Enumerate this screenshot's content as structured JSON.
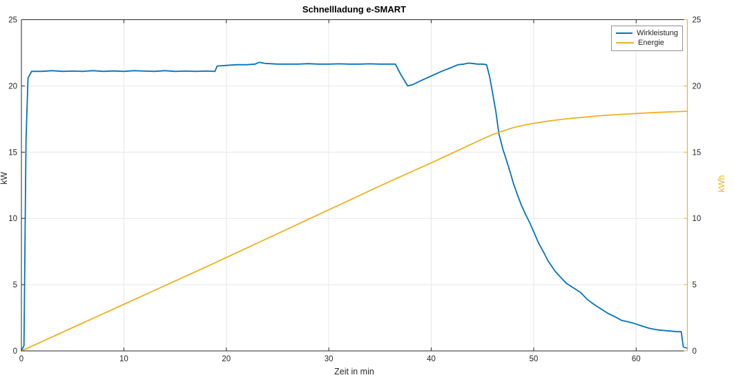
{
  "title": "Schnellladung e-SMART",
  "axes": {
    "x": {
      "label": "Zeit in min",
      "min": 0,
      "max": 65,
      "ticks": [
        0,
        10,
        20,
        30,
        40,
        50,
        60
      ]
    },
    "y_left": {
      "label": "kW",
      "min": 0,
      "max": 25,
      "ticks": [
        0,
        5,
        10,
        15,
        20,
        25
      ],
      "color": "#262626"
    },
    "y_right": {
      "label": "kWh",
      "min": 0,
      "max": 25,
      "ticks": [
        0,
        5,
        10,
        15,
        20,
        25
      ],
      "color": "#EDB120"
    }
  },
  "legend": {
    "position": "top-right",
    "items": [
      {
        "label": "Wirkleistung",
        "color": "#0072BD"
      },
      {
        "label": "Energie",
        "color": "#EDB120"
      }
    ]
  },
  "style": {
    "grid_color": "#e7e7e7",
    "axis_color": "#262626",
    "background": "#ffffff",
    "line_width": 1.8
  },
  "chart_data": {
    "type": "line",
    "title": "Schnellladung e-SMART",
    "xlabel": "Zeit in min",
    "ylabel_left": "kW",
    "ylabel_right": "kWh",
    "xlim": [
      0,
      65
    ],
    "ylim_left": [
      0,
      25
    ],
    "ylim_right": [
      0,
      25
    ],
    "grid": true,
    "legend_position": "top-right",
    "series": [
      {
        "name": "Wirkleistung",
        "axis": "left",
        "unit": "kW",
        "color": "#0072BD",
        "x": [
          0,
          0.25,
          0.45,
          0.65,
          1,
          2,
          3,
          4,
          5,
          6,
          7,
          8,
          9,
          10,
          11,
          12,
          13,
          14,
          15,
          16,
          17,
          18,
          18.9,
          19.1,
          20,
          21,
          22,
          22.8,
          23.2,
          23.8,
          25,
          26,
          27,
          28,
          29,
          30,
          31,
          32,
          33,
          34,
          35,
          36,
          36.5,
          37,
          37.7,
          38.2,
          39,
          40,
          41,
          42,
          42.6,
          43.2,
          43.6,
          44,
          44.5,
          45,
          45.4,
          45.7,
          46,
          46.3,
          46.6,
          47,
          47.3,
          47.7,
          48,
          48.4,
          48.8,
          49.2,
          49.6,
          50,
          50.5,
          51,
          51.4,
          52.1,
          52.7,
          53.2,
          54,
          54.6,
          55.2,
          55.9,
          56.5,
          57.2,
          58,
          58.6,
          59.2,
          59.7,
          60.5,
          61.3,
          62,
          62.6,
          63.3,
          64,
          64.4,
          64.6,
          65
        ],
        "y": [
          0,
          0.4,
          16,
          20.6,
          21.1,
          21.1,
          21.15,
          21.1,
          21.12,
          21.1,
          21.15,
          21.1,
          21.13,
          21.1,
          21.15,
          21.12,
          21.1,
          21.15,
          21.1,
          21.12,
          21.1,
          21.12,
          21.1,
          21.5,
          21.55,
          21.6,
          21.6,
          21.65,
          21.78,
          21.7,
          21.65,
          21.65,
          21.65,
          21.68,
          21.65,
          21.65,
          21.67,
          21.65,
          21.65,
          21.67,
          21.65,
          21.65,
          21.65,
          20.9,
          20.0,
          20.1,
          20.4,
          20.75,
          21.1,
          21.4,
          21.6,
          21.65,
          21.72,
          21.7,
          21.65,
          21.65,
          21.6,
          20.7,
          19.4,
          18.1,
          16.4,
          15.2,
          14.5,
          13.5,
          12.7,
          11.8,
          11.0,
          10.3,
          9.7,
          9.0,
          8.1,
          7.4,
          6.8,
          6.0,
          5.5,
          5.1,
          4.7,
          4.4,
          3.9,
          3.5,
          3.2,
          2.85,
          2.55,
          2.3,
          2.2,
          2.1,
          1.9,
          1.7,
          1.6,
          1.55,
          1.5,
          1.45,
          1.45,
          0.3,
          0.2
        ]
      },
      {
        "name": "Energie",
        "axis": "right",
        "unit": "kWh",
        "color": "#EDB120",
        "x": [
          0,
          2,
          4,
          6,
          8,
          10,
          12,
          14,
          16,
          18,
          20,
          22,
          24,
          26,
          28,
          30,
          32,
          34,
          36,
          38,
          40,
          42,
          44,
          45,
          46,
          47,
          48,
          49,
          50,
          51,
          52,
          53,
          54,
          55,
          56,
          57,
          58,
          59,
          60,
          61,
          62,
          63,
          64,
          65
        ],
        "y": [
          0,
          0.7,
          1.41,
          2.11,
          2.81,
          3.52,
          4.22,
          4.92,
          5.63,
          6.33,
          7.05,
          7.77,
          8.49,
          9.21,
          9.93,
          10.65,
          11.37,
          12.09,
          12.81,
          13.5,
          14.19,
          14.91,
          15.63,
          15.99,
          16.33,
          16.6,
          16.85,
          17.03,
          17.18,
          17.3,
          17.41,
          17.5,
          17.58,
          17.65,
          17.72,
          17.78,
          17.83,
          17.88,
          17.92,
          17.96,
          18.0,
          18.03,
          18.06,
          18.09
        ]
      }
    ]
  }
}
